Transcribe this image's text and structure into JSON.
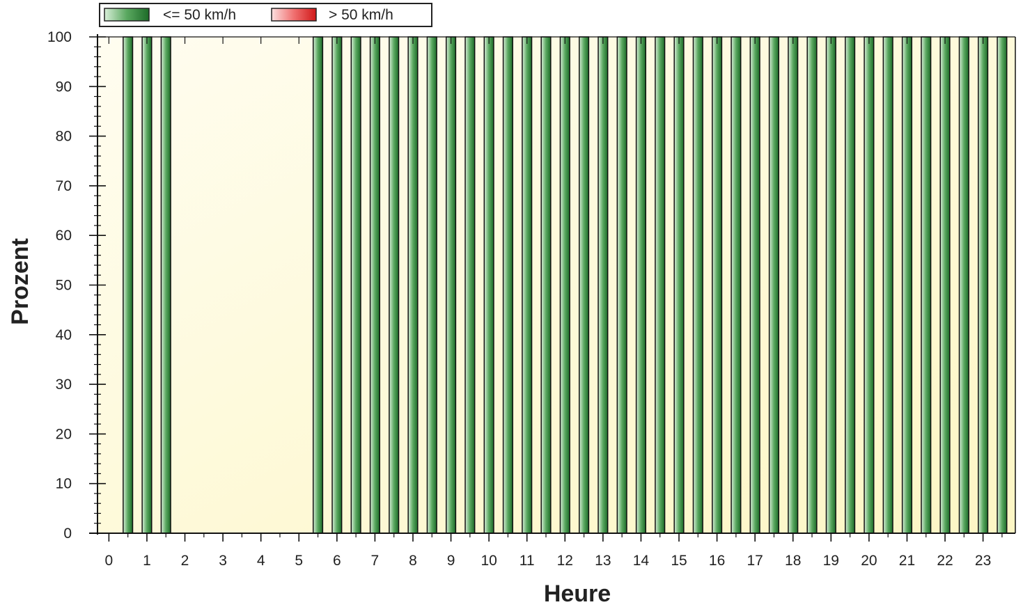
{
  "chart_data": {
    "type": "bar",
    "xlabel": "Heure",
    "ylabel": "Prozent",
    "ylim": [
      0,
      100
    ],
    "y_ticks": [
      0,
      10,
      20,
      30,
      40,
      50,
      60,
      70,
      80,
      90,
      100
    ],
    "categories": [
      "0",
      "1",
      "2",
      "3",
      "4",
      "5",
      "6",
      "7",
      "8",
      "9",
      "10",
      "11",
      "12",
      "13",
      "14",
      "15",
      "16",
      "17",
      "18",
      "19",
      "20",
      "21",
      "22",
      "23"
    ],
    "bin_width_hours": 0.5,
    "stacked": true,
    "legend_position": "top-left",
    "grid": false,
    "series": [
      {
        "name": "<= 50 km/h",
        "color": "#2e8b3e",
        "x": [
          0.5,
          1.0,
          1.5,
          5.5,
          6.0,
          6.5,
          7.0,
          7.5,
          8.0,
          8.5,
          9.0,
          9.5,
          10.0,
          10.5,
          11.0,
          11.5,
          12.0,
          12.5,
          13.0,
          13.5,
          14.0,
          14.5,
          15.0,
          15.5,
          16.0,
          16.5,
          17.0,
          17.5,
          18.0,
          18.5,
          19.0,
          19.5,
          20.0,
          20.5,
          21.0,
          21.5,
          22.0,
          22.5,
          23.0,
          23.5
        ],
        "values": [
          100,
          100,
          100,
          100,
          100,
          100,
          100,
          100,
          100,
          100,
          100,
          100,
          100,
          100,
          100,
          100,
          100,
          100,
          100,
          100,
          100,
          100,
          100,
          100,
          100,
          100,
          100,
          100,
          100,
          100,
          100,
          100,
          100,
          100,
          100,
          100,
          100,
          100,
          100,
          100
        ]
      },
      {
        "name": "> 50 km/h",
        "color": "#e02020",
        "x": [
          0.5,
          1.0,
          1.5,
          5.5,
          6.0,
          6.5,
          7.0,
          7.5,
          8.0,
          8.5,
          9.0,
          9.5,
          10.0,
          10.5,
          11.0,
          11.5,
          12.0,
          12.5,
          13.0,
          13.5,
          14.0,
          14.5,
          15.0,
          15.5,
          16.0,
          16.5,
          17.0,
          17.5,
          18.0,
          18.5,
          19.0,
          19.5,
          20.0,
          20.5,
          21.0,
          21.5,
          22.0,
          22.5,
          23.0,
          23.5
        ],
        "values": [
          0,
          0,
          0,
          0,
          0,
          0,
          0,
          0,
          0,
          0,
          0,
          0,
          0,
          0,
          0,
          0,
          0,
          0,
          0,
          0,
          0,
          0,
          0,
          0,
          0,
          0,
          0,
          0,
          0,
          0,
          0,
          0,
          0,
          0,
          0,
          0,
          0,
          0,
          0,
          0
        ]
      }
    ]
  },
  "legend": {
    "items": [
      {
        "label": "<= 50 km/h",
        "color": "#2e8b3e"
      },
      {
        "label": "> 50 km/h",
        "color": "#e02020"
      }
    ]
  }
}
